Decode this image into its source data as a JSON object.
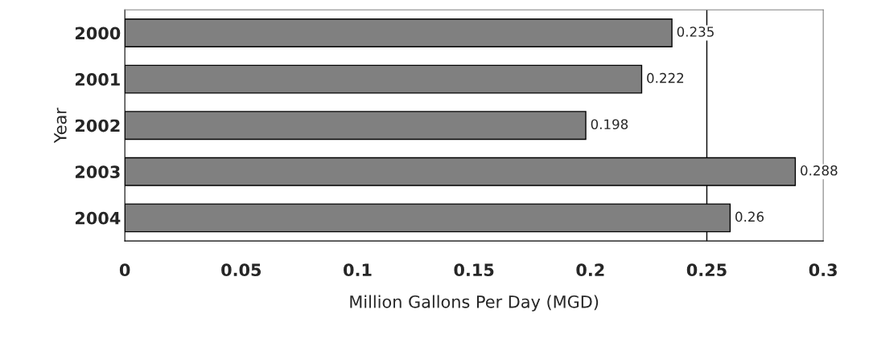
{
  "chart_data": {
    "type": "bar",
    "orientation": "horizontal",
    "categories": [
      "2000",
      "2001",
      "2002",
      "2003",
      "2004"
    ],
    "values": [
      0.235,
      0.222,
      0.198,
      0.288,
      0.26
    ],
    "color": "#808080",
    "data_labels": true,
    "xlabel": "Million Gallons Per Day (MGD)",
    "ylabel": "Year",
    "xlim": [
      0,
      0.3
    ],
    "xticks": [
      0,
      0.05,
      0.1,
      0.15,
      0.2,
      0.25,
      0.3
    ],
    "ref_lines": [
      {
        "axis": "x",
        "value": 0.25,
        "label": null
      }
    ],
    "grid": false,
    "legend": false
  }
}
